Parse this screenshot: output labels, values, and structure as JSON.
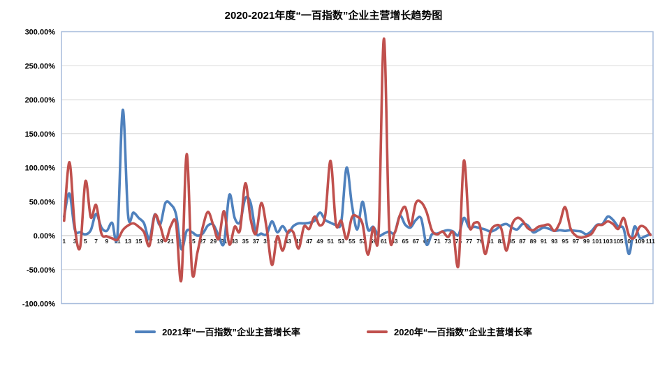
{
  "title": "2020-2021年度“一百指数”企业主营增长趋势图",
  "chart_data": {
    "type": "line",
    "title": "2020-2021年度“一百指数”企业主营增长趋势图",
    "xlabel": "",
    "ylabel": "",
    "ylim": [
      -100,
      300
    ],
    "y_tick_step": 50,
    "grid": true,
    "smoothed_lines": true,
    "legend_position": "bottom",
    "grid_color": "#D9D9D9",
    "zero_axis_color": "#BFBFBF",
    "plot_border_color": "#A7BCDC",
    "y_ticks": [
      "300.00%",
      "250.00%",
      "200.00%",
      "150.00%",
      "100.00%",
      "50.00%",
      "0.00%",
      "-50.00%",
      "-100.00%"
    ],
    "x_tick_labels": [
      "1",
      "3",
      "5",
      "7",
      "9",
      "11",
      "13",
      "15",
      "17",
      "19",
      "21",
      "23",
      "25",
      "27",
      "29",
      "31",
      "33",
      "35",
      "37",
      "39",
      "41",
      "43",
      "45",
      "47",
      "49",
      "51",
      "53",
      "55",
      "57",
      "59",
      "61",
      "63",
      "65",
      "67",
      "69",
      "71",
      "73",
      "75",
      "77",
      "79",
      "81",
      "83",
      "85",
      "87",
      "89",
      "91",
      "93",
      "95",
      "97",
      "99",
      "101",
      "103",
      "105",
      "107",
      "109",
      "111"
    ],
    "x_range": {
      "min": 1,
      "max": 111,
      "step": 1
    },
    "unit": "percent",
    "series": [
      {
        "name": "2021年“一百指数”企业主营增长率",
        "color": "#4F81BD",
        "values": [
          28,
          62,
          9,
          5,
          2,
          8,
          32,
          12,
          7,
          19,
          0,
          185,
          30,
          34,
          26,
          18,
          -5,
          31,
          16,
          48,
          46,
          31,
          -20,
          7,
          5,
          0,
          3,
          15,
          16,
          0,
          -11,
          60,
          26,
          20,
          55,
          48,
          4,
          3,
          2,
          21,
          5,
          14,
          4,
          14,
          18,
          18,
          19,
          22,
          34,
          23,
          19,
          16,
          20,
          100,
          45,
          9,
          50,
          9,
          13,
          0,
          3,
          6,
          4,
          29,
          16,
          12,
          23,
          25,
          -13,
          2,
          3,
          6,
          8,
          6,
          1,
          26,
          12,
          13,
          11,
          9,
          6,
          9,
          15,
          17,
          12,
          9,
          17,
          15,
          5,
          8,
          12,
          10,
          7,
          8,
          7,
          8,
          7,
          6,
          2,
          7,
          16,
          17,
          28,
          23,
          13,
          10,
          -27,
          13,
          -3,
          -1,
          2
        ]
      },
      {
        "name": "2020年“一百指数”企业主营增长率",
        "color": "#C0504D",
        "values": [
          22,
          108,
          13,
          -17,
          80,
          27,
          45,
          3,
          -1,
          -4,
          -6,
          8,
          15,
          18,
          13,
          5,
          -15,
          30,
          15,
          -8,
          14,
          18,
          -65,
          120,
          -53,
          -25,
          12,
          35,
          15,
          -5,
          36,
          -13,
          13,
          8,
          77,
          24,
          3,
          48,
          11,
          -43,
          -1,
          -22,
          5,
          5,
          -19,
          13,
          10,
          28,
          15,
          30,
          110,
          17,
          22,
          -5,
          27,
          28,
          17,
          -28,
          12,
          3,
          290,
          10,
          4,
          30,
          42,
          15,
          48,
          49,
          35,
          8,
          2,
          6,
          -2,
          4,
          -43,
          110,
          15,
          19,
          15,
          -27,
          6,
          15,
          11,
          -22,
          15,
          26,
          22,
          11,
          8,
          13,
          15,
          16,
          7,
          19,
          42,
          11,
          0,
          -3,
          -1,
          3,
          15,
          16,
          21,
          17,
          10,
          26,
          0,
          -3,
          13,
          12,
          1
        ]
      }
    ]
  }
}
